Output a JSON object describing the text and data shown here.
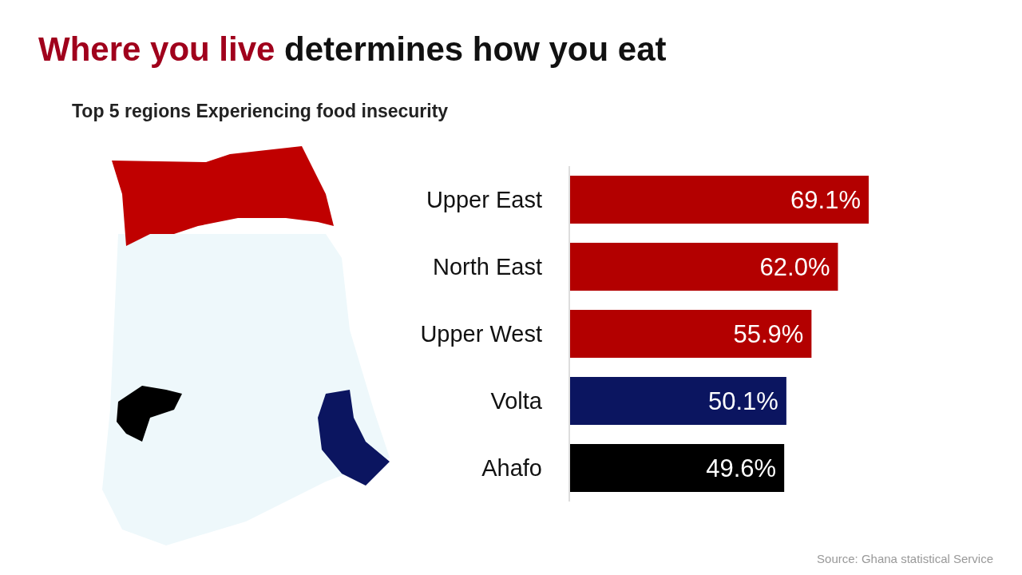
{
  "chart_data": {
    "type": "bar",
    "orientation": "horizontal",
    "title": "Where you live determines how you eat",
    "subtitle": "Top 5 regions Experiencing food insecurity",
    "categories": [
      "Upper East",
      "North East",
      "Upper West",
      "Volta",
      "Ahafo"
    ],
    "values": [
      69.1,
      62.0,
      55.9,
      50.1,
      49.6
    ],
    "colors": [
      "#b30000",
      "#b30000",
      "#b30000",
      "#0b1560",
      "#000000"
    ],
    "value_labels": [
      "69.1%",
      "62.0%",
      "55.9%",
      "50.1%",
      "49.6%"
    ],
    "annotations": [
      "Source: Ghana statistical Service"
    ],
    "grid": false,
    "legend": false
  }
}
